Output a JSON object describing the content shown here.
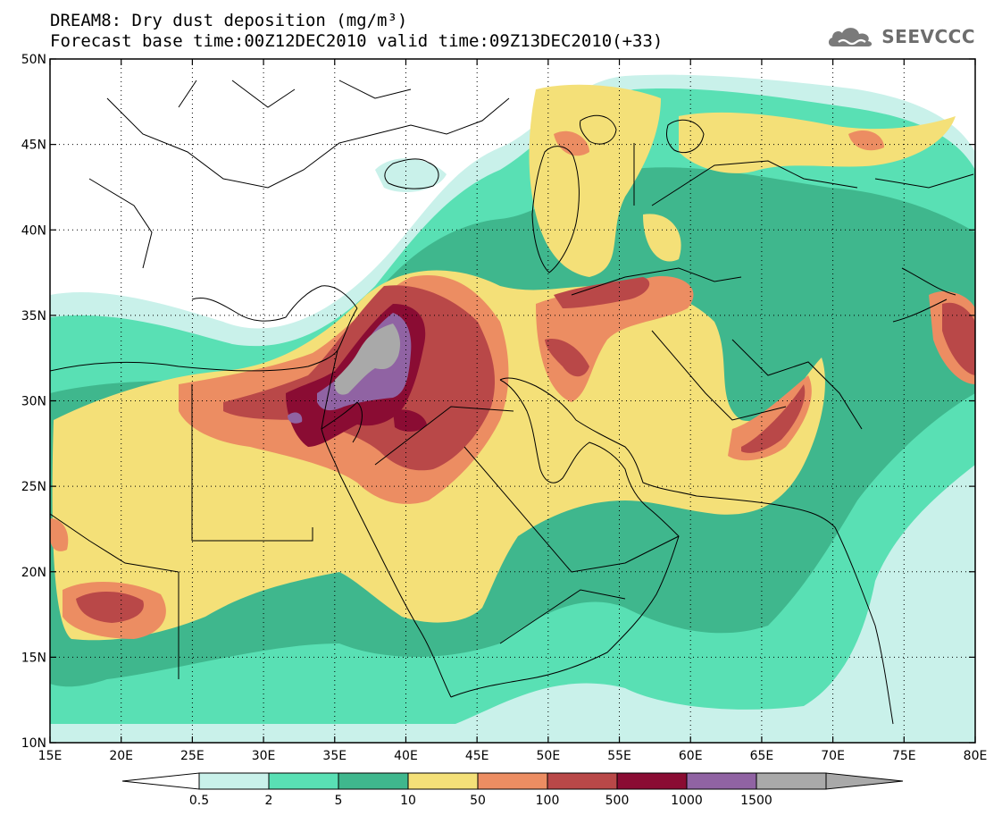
{
  "header": {
    "title": "DREAM8: Dry dust deposition (mg/m³)",
    "subtitle": "Forecast base time:00Z12DEC2010 valid time:09Z13DEC2010(+33)"
  },
  "brand": {
    "name": "SEEVCCC",
    "icon": "cloud-logo-icon"
  },
  "map": {
    "lon_range": [
      15,
      80
    ],
    "lat_range": [
      10,
      50
    ],
    "x_ticks": [
      "15E",
      "20E",
      "25E",
      "30E",
      "35E",
      "40E",
      "45E",
      "50E",
      "55E",
      "60E",
      "65E",
      "70E",
      "75E",
      "80E"
    ],
    "y_ticks": [
      "10N",
      "15N",
      "20N",
      "25N",
      "30N",
      "35N",
      "40N",
      "45N",
      "50N"
    ],
    "grid": "dotted"
  },
  "colorbar": {
    "labels": [
      "0.5",
      "2",
      "5",
      "10",
      "50",
      "100",
      "500",
      "1000",
      "1500"
    ],
    "colors": [
      "#c9f1ea",
      "#59e0b4",
      "#3fb78d",
      "#f4e078",
      "#ec8d62",
      "#b94848",
      "#8a0c33",
      "#9063a3",
      "#a9a9a9"
    ],
    "extend": "both"
  },
  "palette": {
    "ocean": "#ffffff",
    "land": "#ffffff",
    "outline": "#000000"
  }
}
